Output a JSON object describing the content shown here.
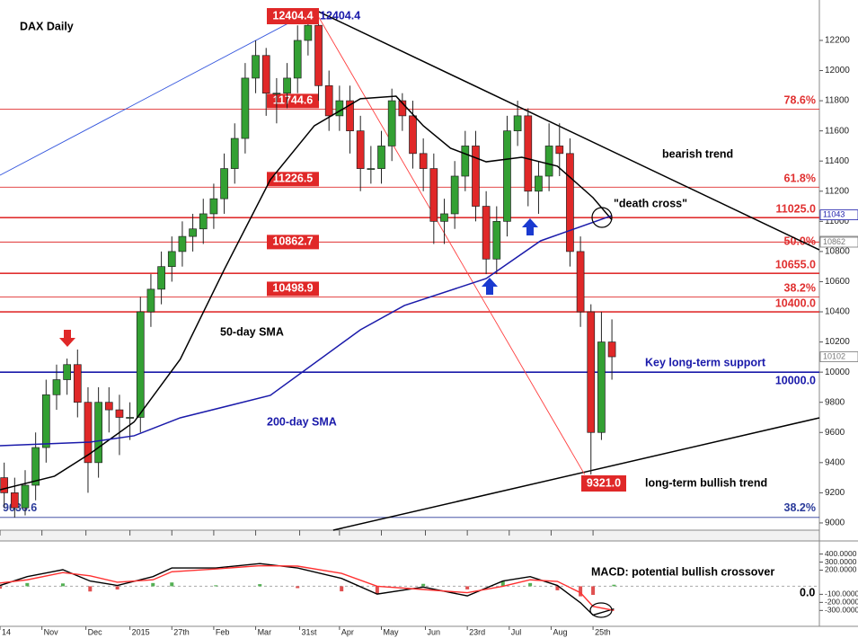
{
  "chart_data": [
    {
      "type": "candlestick",
      "title": "DAX Daily",
      "x": [
        2,
        7,
        12,
        17,
        22,
        27,
        32,
        37,
        42,
        47,
        52,
        57,
        62,
        67,
        72,
        77,
        82,
        87,
        92,
        97,
        102,
        107,
        112,
        117,
        122,
        127,
        132,
        137,
        142,
        147,
        152,
        157,
        162,
        167,
        172,
        177,
        182,
        187,
        192,
        197,
        202,
        207,
        212,
        217,
        222,
        227,
        232,
        237,
        242,
        247,
        252,
        257,
        262,
        267,
        272,
        277,
        282,
        287,
        292
      ],
      "open": [
        9300,
        9200,
        9100,
        9250,
        9500,
        9850,
        9950,
        10050,
        9800,
        9400,
        9800,
        9750,
        9700,
        9700,
        10400,
        10550,
        10700,
        10800,
        10900,
        10950,
        11050,
        11150,
        11350,
        11550,
        11950,
        12100,
        11850,
        11850,
        11950,
        12200,
        12300,
        11900,
        11700,
        11800,
        11600,
        11350,
        11350,
        11500,
        11800,
        11700,
        11450,
        11350,
        11000,
        11050,
        11300,
        11500,
        11100,
        10750,
        11000,
        11600,
        11700,
        11200,
        11300,
        11500,
        11450,
        10800,
        10400,
        9600,
        10200
      ],
      "high": [
        9400,
        9300,
        9350,
        9600,
        9950,
        10050,
        10090,
        10150,
        9900,
        9900,
        9900,
        9850,
        9800,
        10500,
        10650,
        10800,
        10900,
        11000,
        11050,
        11150,
        11250,
        11450,
        11650,
        12050,
        12200,
        12150,
        11950,
        12050,
        12300,
        12404.4,
        12350,
        12000,
        11900,
        11900,
        11700,
        11500,
        11600,
        11880,
        11850,
        11800,
        11550,
        11450,
        11150,
        11400,
        11600,
        11600,
        11200,
        11100,
        11700,
        11800,
        11750,
        11400,
        11650,
        11650,
        11550,
        10900,
        10450,
        10400,
        10350
      ],
      "low": [
        9100,
        9036.6,
        9050,
        9150,
        9400,
        9750,
        9850,
        9700,
        9200,
        9300,
        9600,
        9450,
        9550,
        9600,
        10300,
        10450,
        10600,
        10700,
        10800,
        10850,
        10950,
        11050,
        11250,
        11450,
        11850,
        11700,
        11650,
        11750,
        11850,
        12100,
        11800,
        11600,
        11600,
        11450,
        11200,
        11250,
        11250,
        11400,
        11600,
        11350,
        11200,
        10850,
        10850,
        10950,
        11200,
        11000,
        10650,
        10650,
        10900,
        11500,
        11100,
        11050,
        11200,
        11300,
        10700,
        10300,
        9321,
        9550,
        9950
      ],
      "close": [
        9200,
        9100,
        9250,
        9500,
        9850,
        9950,
        10050,
        9800,
        9400,
        9800,
        9750,
        9700,
        9700,
        10400,
        10550,
        10700,
        10800,
        10900,
        10950,
        11050,
        11150,
        11350,
        11550,
        11950,
        12100,
        11850,
        11850,
        11950,
        12200,
        12300,
        11900,
        11700,
        11800,
        11600,
        11350,
        11350,
        11500,
        11800,
        11700,
        11450,
        11350,
        11000,
        11050,
        11300,
        11500,
        11100,
        10750,
        11000,
        11600,
        11700,
        11200,
        11300,
        11500,
        11450,
        10800,
        10400,
        9600,
        10200,
        10102
      ],
      "up_color": "#33a033",
      "down_color": "#e02828",
      "xlim": [
        0,
        391
      ],
      "ylim": [
        8952,
        12468
      ],
      "yticks": [
        9000,
        9200,
        9400,
        9600,
        9800,
        10000,
        10200,
        10400,
        10600,
        10800,
        11000,
        11200,
        11400,
        11600,
        11800,
        12000,
        12200
      ],
      "xticks": [
        {
          "value": 0,
          "label": "14"
        },
        {
          "value": 20,
          "label": "Nov"
        },
        {
          "value": 41,
          "label": "Dec"
        },
        {
          "value": 62,
          "label": "2015"
        },
        {
          "value": 82,
          "label": "27th"
        },
        {
          "value": 102,
          "label": "Feb"
        },
        {
          "value": 122,
          "label": "Mar"
        },
        {
          "value": 143,
          "label": "31st"
        },
        {
          "value": 162,
          "label": "Apr"
        },
        {
          "value": 182,
          "label": "May"
        },
        {
          "value": 203,
          "label": "Jun"
        },
        {
          "value": 223,
          "label": "23rd"
        },
        {
          "value": 243,
          "label": "Jul"
        },
        {
          "value": 263,
          "label": "Aug"
        },
        {
          "value": 283,
          "label": "25th"
        }
      ],
      "lines": [
        {
          "name": "50-day SMA",
          "color": "#000000",
          "x": [
            0,
            26,
            43,
            64,
            86,
            107,
            129,
            150,
            172,
            189,
            202,
            215,
            232,
            249,
            266,
            283,
            292
          ],
          "values": [
            9220,
            9310,
            9460,
            9670,
            10085,
            10680,
            11276,
            11634,
            11813,
            11830,
            11634,
            11485,
            11395,
            11425,
            11366,
            11157,
            11010
          ]
        },
        {
          "name": "200-day SMA",
          "color": "#1a1aaa",
          "x": [
            0,
            43,
            64,
            86,
            129,
            172,
            193,
            232,
            258,
            292
          ],
          "values": [
            9512,
            9536,
            9578,
            9697,
            9846,
            10281,
            10442,
            10621,
            10871,
            11038
          ]
        }
      ],
      "trendlines": [
        {
          "name": "bearish trend",
          "color": "#000000",
          "x": [
            150,
            391
          ],
          "values": [
            12404.4,
            10811
          ]
        },
        {
          "name": "long-term bullish trend",
          "color": "#000000",
          "x": [
            159,
            391
          ],
          "values": [
            8952,
            9697
          ]
        },
        {
          "color": "#3355dd",
          "x": [
            0,
            150
          ],
          "values": [
            11306,
            12404.4
          ]
        },
        {
          "color": "#ff4040",
          "x": [
            150,
            279
          ],
          "values": [
            12404.4,
            9321
          ]
        }
      ],
      "levels": [
        {
          "value": 11744.6,
          "color": "#e03030",
          "left": "11744.6",
          "right": "78.6%"
        },
        {
          "value": 11226.5,
          "color": "#e03030",
          "left": "11226.5",
          "right": "61.8%"
        },
        {
          "value": 11025,
          "color": "#e03030",
          "right": "11025.0"
        },
        {
          "value": 10862.7,
          "color": "#e03030",
          "left": "10862.7",
          "right": "50.0%"
        },
        {
          "value": 10655,
          "color": "#e03030",
          "right": "10655.0"
        },
        {
          "value": 10498.9,
          "color": "#e03030",
          "left": "10498.9",
          "right": "38.2%"
        },
        {
          "value": 10400,
          "color": "#e03030",
          "right": "10400.0"
        },
        {
          "value": 10000,
          "color": "#1a1aaa",
          "right": "10000.0"
        },
        {
          "value": 9036.6,
          "color": "#2a3a9a",
          "left": "9036.6",
          "right": "38.2%"
        }
      ],
      "extremes": [
        {
          "value": 12404.4
        },
        {
          "value": 9321,
          "label": "9321.0"
        }
      ],
      "price_tags": [
        {
          "value": 11043,
          "color": "#1a1aaa"
        },
        {
          "value": 10868,
          "color": "#777777"
        },
        {
          "value": 10862,
          "color": "#777777"
        },
        {
          "value": 10102,
          "color": "#777777"
        }
      ],
      "annotations": [
        {
          "text": "\"death cross\"",
          "color": "#000000"
        },
        {
          "text": "Key long-term support",
          "color": "#1a1aaa"
        }
      ]
    },
    {
      "type": "macd",
      "title": "MACD: potential bullish crossover",
      "zero_label": "0.0",
      "x": [
        0,
        13,
        30,
        43,
        56,
        73,
        82,
        103,
        124,
        142,
        163,
        180,
        202,
        223,
        240,
        253,
        266,
        277,
        283,
        293
      ],
      "series": [
        {
          "name": "MACD",
          "color": "#000000",
          "values": [
            10,
            120,
            205,
            65,
            10,
            120,
            227,
            227,
            281,
            227,
            97,
            -97,
            -10,
            -119,
            65,
            120,
            10,
            -205,
            -357,
            -281
          ]
        },
        {
          "name": "Signal",
          "color": "#ff3030",
          "values": [
            40,
            80,
            170,
            130,
            50,
            80,
            180,
            215,
            255,
            250,
            160,
            0,
            -40,
            -80,
            0,
            80,
            60,
            -80,
            -250,
            -300
          ]
        }
      ],
      "histogram": [
        -30,
        40,
        35,
        -65,
        -40,
        40,
        47,
        12,
        26,
        -23,
        -63,
        -97,
        30,
        -39,
        65,
        40,
        -50,
        -125,
        -107,
        19
      ],
      "ylim": [
        -497,
        551
      ],
      "yticks": [
        {
          "value": 400,
          "label": "400.0000"
        },
        {
          "value": 300,
          "label": "300.0000"
        },
        {
          "value": 200,
          "label": "200.0000"
        },
        {
          "value": -100,
          "label": "-100.0000"
        },
        {
          "value": -200,
          "label": "-200.0000"
        },
        {
          "value": -300,
          "label": "-300.0000"
        }
      ]
    }
  ]
}
